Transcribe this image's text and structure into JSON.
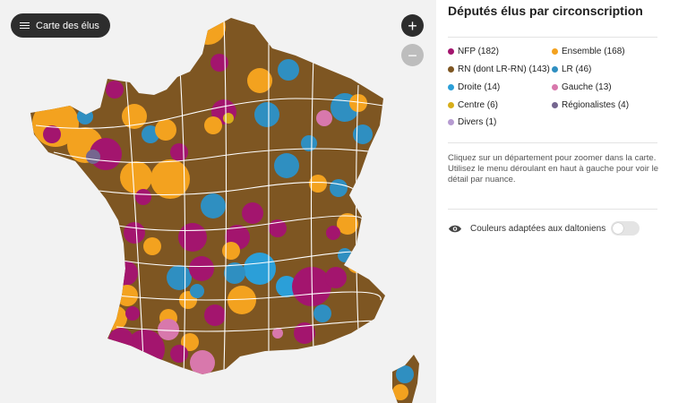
{
  "menu": {
    "label": "Carte des élus",
    "icon": "hamburger-icon"
  },
  "zoom": {
    "in_label": "+",
    "out_label": "−"
  },
  "panel": {
    "title": "Députés élus par circonscription",
    "help_line1": "Cliquez sur un département pour zoomer dans la carte.",
    "help_line2": "Utilisez le menu déroulant en haut à gauche pour voir le détail par nuance.",
    "colorblind_label": "Couleurs adaptées aux daltoniens",
    "colorblind_enabled": false
  },
  "legend": [
    {
      "label": "NFP (182)",
      "color": "#a3156e"
    },
    {
      "label": "Ensemble (168)",
      "color": "#f3a21f"
    },
    {
      "label": "RN (dont LR-RN) (143)",
      "color": "#7e5622"
    },
    {
      "label": "LR (46)",
      "color": "#2f8fc1"
    },
    {
      "label": "Droite (14)",
      "color": "#2b9fd8"
    },
    {
      "label": "Gauche (13)",
      "color": "#d878ac"
    },
    {
      "label": "Centre (6)",
      "color": "#d7ae1b"
    },
    {
      "label": "Régionalistes (4)",
      "color": "#75668f"
    },
    {
      "label": "Divers (1)",
      "color": "#b69bd1"
    }
  ]
}
